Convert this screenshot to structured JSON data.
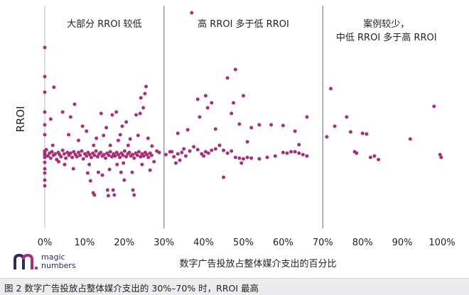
{
  "caption": "图 2 数字广告投放占整体媒介支出的 30%–70% 时，RROI 最高",
  "logo": {
    "line1": "magic",
    "line2": "numbers"
  },
  "colors": {
    "point": "#a8307a",
    "divider": "#9a9a9a",
    "axis": "#c8c8c8",
    "text": "#222222"
  },
  "chart_data": {
    "type": "scatter",
    "title": "",
    "xlabel": "数字广告投放占整体媒介支出的百分比",
    "ylabel": "RROI",
    "xlim": [
      0,
      100
    ],
    "x_ticks": [
      "0%",
      "10%",
      "20%",
      "30%",
      "40%",
      "50%",
      "60%",
      "70%",
      "80%",
      "90%",
      "100%"
    ],
    "x_tick_values": [
      0,
      10,
      20,
      30,
      40,
      50,
      60,
      70,
      80,
      90,
      100
    ],
    "y_ticks": [],
    "grid": false,
    "legend": "none",
    "region_dividers": [
      30,
      70
    ],
    "regions": [
      {
        "lines": [
          "大部分 RROI 较低"
        ],
        "x_center": 15
      },
      {
        "lines": [
          "高 RROI 多于低 RROI"
        ],
        "x_center": 50
      },
      {
        "lines": [
          "案例较少，",
          "中低 RROI 多于高 RROI"
        ],
        "x_center": 86
      }
    ],
    "series": [
      {
        "points": [
          [
            0,
            217
          ],
          [
            0,
            215
          ],
          [
            0,
            219
          ],
          [
            0,
            213
          ],
          [
            0,
            222
          ],
          [
            0,
            229
          ],
          [
            0,
            238
          ],
          [
            0,
            244
          ],
          [
            0,
            254
          ],
          [
            0,
            262
          ],
          [
            0,
            190
          ],
          [
            0,
            176
          ],
          [
            0,
            158
          ],
          [
            0,
            130
          ],
          [
            0,
            108
          ],
          [
            0,
            67
          ],
          [
            0.4,
            211
          ],
          [
            0.8,
            220
          ],
          [
            1.2,
            216
          ],
          [
            1.5,
            223
          ],
          [
            1.8,
            214
          ],
          [
            2.2,
            219
          ],
          [
            2.6,
            217
          ],
          [
            3,
            225
          ],
          [
            3.4,
            215
          ],
          [
            3.7,
            218
          ],
          [
            4.1,
            221
          ],
          [
            4.5,
            212
          ],
          [
            4.9,
            217
          ],
          [
            5.3,
            223
          ],
          [
            5.7,
            215
          ],
          [
            6.1,
            219
          ],
          [
            6.5,
            216
          ],
          [
            6.9,
            222
          ],
          [
            7.3,
            214
          ],
          [
            7.7,
            218
          ],
          [
            8.1,
            221
          ],
          [
            8.5,
            215
          ],
          [
            8.9,
            219
          ],
          [
            9.3,
            213
          ],
          [
            9.7,
            224
          ],
          [
            10.1,
            217
          ],
          [
            10.5,
            220
          ],
          [
            10.9,
            215
          ],
          [
            11.3,
            218
          ],
          [
            11.7,
            222
          ],
          [
            12.1,
            216
          ],
          [
            12.5,
            219
          ],
          [
            12.9,
            213
          ],
          [
            13.3,
            221
          ],
          [
            13.7,
            217
          ],
          [
            14.1,
            215
          ],
          [
            14.5,
            220
          ],
          [
            14.9,
            218
          ],
          [
            15.3,
            223
          ],
          [
            15.7,
            216
          ],
          [
            16.1,
            219
          ],
          [
            16.5,
            214
          ],
          [
            16.9,
            221
          ],
          [
            17.3,
            217
          ],
          [
            17.7,
            220
          ],
          [
            18.1,
            215
          ],
          [
            18.5,
            218
          ],
          [
            18.9,
            222
          ],
          [
            19.3,
            216
          ],
          [
            19.7,
            219
          ],
          [
            20.1,
            213
          ],
          [
            20.5,
            221
          ],
          [
            20.9,
            217
          ],
          [
            21.3,
            215
          ],
          [
            21.7,
            220
          ],
          [
            22.1,
            218
          ],
          [
            22.5,
            223
          ],
          [
            22.9,
            216
          ],
          [
            23.3,
            219
          ],
          [
            23.7,
            214
          ],
          [
            24.1,
            221
          ],
          [
            24.5,
            217
          ],
          [
            24.9,
            220
          ],
          [
            25.3,
            215
          ],
          [
            25.7,
            218
          ],
          [
            26.1,
            222
          ],
          [
            26.5,
            216
          ],
          [
            26.9,
            219
          ],
          [
            1.5,
            168
          ],
          [
            2,
            205
          ],
          [
            2.3,
            123
          ],
          [
            3.5,
            228
          ],
          [
            4.5,
            158
          ],
          [
            5,
            232
          ],
          [
            6,
            190
          ],
          [
            6.5,
            165
          ],
          [
            7.2,
            238
          ],
          [
            7.5,
            147
          ],
          [
            8.5,
            198
          ],
          [
            9.5,
            178
          ],
          [
            10.5,
            185
          ],
          [
            10.8,
            244
          ],
          [
            11.2,
            232
          ],
          [
            11.5,
            255
          ],
          [
            12.2,
            272
          ],
          [
            12.5,
            275
          ],
          [
            13,
            195
          ],
          [
            13.5,
            243
          ],
          [
            14.2,
            160
          ],
          [
            14.8,
            191
          ],
          [
            15.5,
            180
          ],
          [
            15.8,
            268
          ],
          [
            16,
            276
          ],
          [
            16.3,
            239
          ],
          [
            16.5,
            205
          ],
          [
            17,
            162
          ],
          [
            17.2,
            268
          ],
          [
            17.5,
            275
          ],
          [
            18.2,
            232
          ],
          [
            18,
            158
          ],
          [
            18.5,
            198
          ],
          [
            19,
            190
          ],
          [
            19.2,
            243
          ],
          [
            19.5,
            178
          ],
          [
            20,
            254
          ],
          [
            20.5,
            172
          ],
          [
            21,
            205
          ],
          [
            21.5,
            196
          ],
          [
            22,
            243
          ],
          [
            22.2,
            268
          ],
          [
            22.5,
            275
          ],
          [
            23,
            162
          ],
          [
            23.5,
            191
          ],
          [
            24,
            160
          ],
          [
            24.5,
            232
          ],
          [
            24.8,
            152
          ],
          [
            25.2,
            132
          ],
          [
            25.5,
            122
          ],
          [
            26,
            195
          ],
          [
            26.5,
            240
          ],
          [
            27,
            206
          ],
          [
            27.5,
            228
          ],
          [
            28.2,
            213
          ],
          [
            28.8,
            215
          ],
          [
            12.3,
            205
          ],
          [
            14.5,
            247
          ],
          [
            19.8,
            230
          ],
          [
            24.2,
            138
          ],
          [
            30.5,
            218
          ],
          [
            31.5,
            214
          ],
          [
            32.5,
            221
          ],
          [
            33.5,
            217
          ],
          [
            34.5,
            215
          ],
          [
            35.5,
            220
          ],
          [
            36.5,
            213
          ],
          [
            37.5,
            207
          ],
          [
            38.5,
            211
          ],
          [
            39.5,
            217
          ],
          [
            40.5,
            214
          ],
          [
            41.2,
            216
          ],
          [
            42,
            212
          ],
          [
            43,
            210
          ],
          [
            44,
            205
          ],
          [
            45,
            212
          ],
          [
            46,
            216
          ],
          [
            47,
            213
          ],
          [
            48,
            222
          ],
          [
            49,
            223
          ],
          [
            50,
            224
          ],
          [
            51,
            222
          ],
          [
            52,
            223
          ],
          [
            54,
            224
          ],
          [
            56,
            222
          ],
          [
            58,
            220
          ],
          [
            60,
            215
          ],
          [
            61,
            216
          ],
          [
            62,
            214
          ],
          [
            63,
            214
          ],
          [
            64,
            216
          ],
          [
            65,
            218
          ],
          [
            66,
            220
          ],
          [
            32,
            214
          ],
          [
            33,
            230
          ],
          [
            33.5,
            188
          ],
          [
            34,
            226
          ],
          [
            35,
            210
          ],
          [
            36,
            183
          ],
          [
            37,
            18
          ],
          [
            38.5,
            140
          ],
          [
            39,
            165
          ],
          [
            40,
            220
          ],
          [
            40.5,
            135
          ],
          [
            41,
            152
          ],
          [
            42,
            145
          ],
          [
            43,
            182
          ],
          [
            44,
            205
          ],
          [
            45,
            250
          ],
          [
            46,
            110
          ],
          [
            47,
            160
          ],
          [
            47.5,
            145
          ],
          [
            48,
            98
          ],
          [
            49,
            175
          ],
          [
            49.5,
            230
          ],
          [
            50,
            135
          ],
          [
            51,
            200
          ],
          [
            52,
            180
          ],
          [
            54,
            176
          ],
          [
            57,
            176
          ],
          [
            60,
            177
          ],
          [
            63,
            185
          ],
          [
            64,
            204
          ],
          [
            66,
            165
          ]
        ]
      },
      {
        "points": [
          [
            71,
            193
          ],
          [
            72,
            125
          ],
          [
            73,
            178
          ],
          [
            76,
            165
          ],
          [
            77,
            186
          ],
          [
            78,
            214
          ],
          [
            78.5,
            216
          ],
          [
            80,
            188
          ],
          [
            81,
            189
          ],
          [
            82,
            222
          ],
          [
            83,
            220
          ],
          [
            84,
            225
          ],
          [
            92,
            196
          ],
          [
            98,
            150
          ],
          [
            99.5,
            218
          ],
          [
            99.8,
            222
          ]
        ]
      }
    ]
  }
}
